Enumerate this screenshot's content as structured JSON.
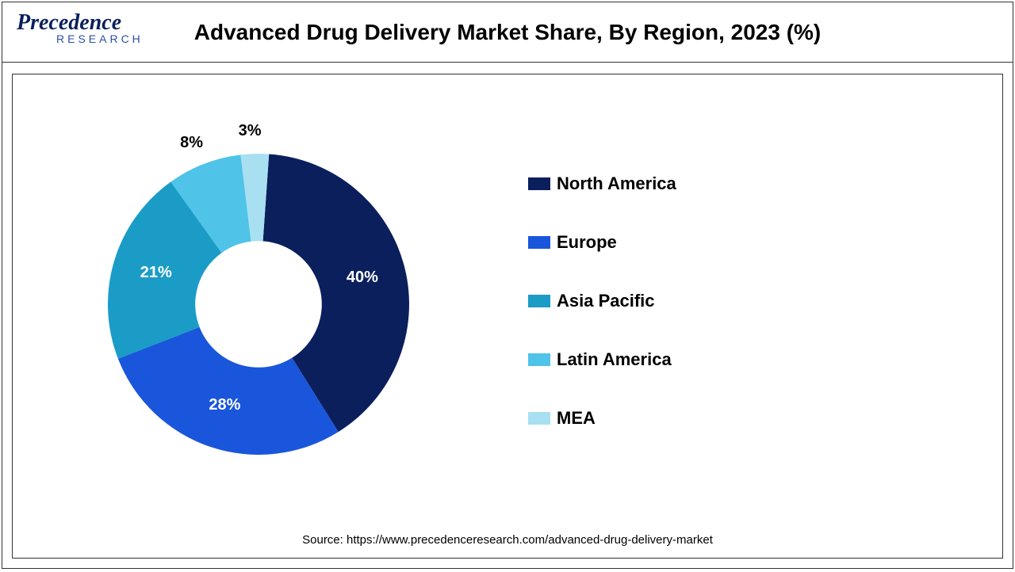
{
  "logo": {
    "main": "Precedence",
    "sub": "RESEARCH"
  },
  "title": "Advanced Drug Delivery Market Share, By Region, 2023 (%)",
  "chart": {
    "type": "donut",
    "inner_radius_ratio": 0.42,
    "background_color": "#ffffff",
    "slices": [
      {
        "label": "North America",
        "value": 40,
        "color": "#0a1f5c",
        "display": "40%"
      },
      {
        "label": "Europe",
        "value": 28,
        "color": "#1a56db",
        "display": "28%"
      },
      {
        "label": "Asia Pacific",
        "value": 21,
        "color": "#1a9cc7",
        "display": "21%"
      },
      {
        "label": "Latin America",
        "value": 8,
        "color": "#4fc3e8",
        "display": "8%"
      },
      {
        "label": "MEA",
        "value": 3,
        "color": "#a8e0f2",
        "display": "3%"
      }
    ],
    "label_fontsize": 20,
    "start_angle_deg": -86
  },
  "legend": {
    "fontsize": 22,
    "fontweight": "bold",
    "swatch_w": 28,
    "swatch_h": 16
  },
  "source": "Source: https://www.precedenceresearch.com/advanced-drug-delivery-market"
}
